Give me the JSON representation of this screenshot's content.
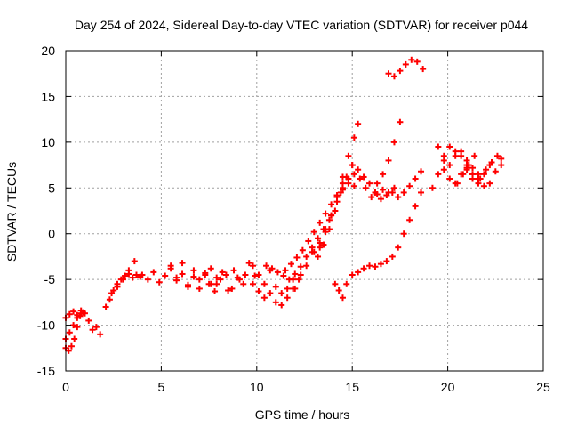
{
  "chart_data": {
    "type": "scatter",
    "title": "Day 254 of 2024, Sidereal Day-to-day VTEC variation (SDTVAR) for receiver p044",
    "xlabel": "GPS time / hours",
    "ylabel": "SDTVAR / TECUs",
    "xlim": [
      0,
      25
    ],
    "ylim": [
      -15,
      20
    ],
    "xticks": [
      0,
      5,
      10,
      15,
      20,
      25
    ],
    "yticks": [
      -15,
      -10,
      -5,
      0,
      5,
      10,
      15,
      20
    ],
    "grid": true,
    "marker": "plus",
    "color": "#ff0000",
    "series": [
      {
        "x": [
          0.0,
          0.15,
          0.3,
          0.45,
          0.6,
          0.75,
          0.9
        ],
        "y": [
          -12.5,
          -12.8,
          -12.3,
          -11.5,
          -10.2,
          -9.0,
          -8.6
        ]
      },
      {
        "x": [
          0.0,
          0.2,
          0.4,
          0.6,
          0.8,
          1.0
        ],
        "y": [
          -9.2,
          -8.8,
          -8.5,
          -8.9,
          -8.4,
          -8.7
        ]
      },
      {
        "x": [
          0.0,
          0.2,
          0.4,
          0.6,
          0.8
        ],
        "y": [
          -11.5,
          -10.8,
          -10.0,
          -9.2,
          -8.7
        ]
      },
      {
        "x": [
          1.2,
          1.4,
          1.6,
          1.8
        ],
        "y": [
          -9.5,
          -10.5,
          -10.2,
          -11.0
        ]
      },
      {
        "x": [
          2.1,
          2.3,
          2.5,
          2.7,
          2.9,
          3.1,
          3.3,
          3.5,
          3.7,
          3.9
        ],
        "y": [
          -8.0,
          -7.2,
          -6.2,
          -5.5,
          -5.0,
          -4.6,
          -4.4,
          -4.8,
          -4.5,
          -4.7
        ]
      },
      {
        "x": [
          2.4,
          2.7,
          3.0,
          3.3,
          3.6
        ],
        "y": [
          -6.5,
          -5.8,
          -5.0,
          -4.0,
          -3.0
        ]
      },
      {
        "x": [
          4.0,
          4.3,
          4.6,
          4.9,
          5.2,
          5.5,
          5.8,
          6.1,
          6.4,
          6.7,
          7.0,
          7.3,
          7.6,
          7.9
        ],
        "y": [
          -4.5,
          -5.0,
          -4.2,
          -5.3,
          -4.6,
          -3.8,
          -5.1,
          -4.4,
          -5.6,
          -4.7,
          -5.0,
          -4.3,
          -5.5,
          -4.8
        ]
      },
      {
        "x": [
          5.5,
          5.8,
          6.1,
          6.4,
          6.7,
          7.0,
          7.3,
          7.6,
          7.9,
          8.2,
          8.5,
          8.8,
          9.1,
          9.4
        ],
        "y": [
          -3.5,
          -4.8,
          -3.2,
          -5.8,
          -4.0,
          -6.0,
          -4.5,
          -3.8,
          -5.5,
          -4.2,
          -6.2,
          -4.0,
          -5.0,
          -4.5
        ]
      },
      {
        "x": [
          7.5,
          7.8,
          8.1,
          8.4,
          8.7,
          9.0,
          9.3,
          9.6,
          9.9
        ],
        "y": [
          -5.5,
          -6.3,
          -5.0,
          -4.5,
          -6.0,
          -4.8,
          -5.5,
          -3.2,
          -4.6
        ]
      },
      {
        "x": [
          9.8,
          10.1,
          10.4,
          10.7,
          11.0,
          11.3,
          11.6,
          11.9
        ],
        "y": [
          -3.5,
          -4.5,
          -5.5,
          -4.0,
          -5.8,
          -6.5,
          -6.0,
          -5.0
        ]
      },
      {
        "x": [
          9.8,
          10.1,
          10.4,
          10.7,
          11.0,
          11.3,
          11.6,
          11.9,
          12.2
        ],
        "y": [
          -5.5,
          -6.3,
          -7.0,
          -6.5,
          -7.5,
          -7.8,
          -7.0,
          -6.0,
          -5.0
        ]
      },
      {
        "x": [
          10.5,
          10.8,
          11.1,
          11.4,
          11.7,
          12.0,
          12.3,
          12.6,
          12.9,
          13.2
        ],
        "y": [
          -3.5,
          -3.8,
          -4.2,
          -4.6,
          -5.0,
          -4.4,
          -3.6,
          -2.5,
          -1.5,
          -0.5
        ]
      },
      {
        "x": [
          11.5,
          11.8,
          12.1,
          12.4,
          12.7,
          13.0,
          13.3,
          13.6,
          13.9,
          14.2,
          14.5
        ],
        "y": [
          -4.0,
          -3.3,
          -2.6,
          -1.8,
          -0.8,
          0.2,
          1.2,
          2.2,
          3.2,
          4.2,
          5.0
        ]
      },
      {
        "x": [
          12.0,
          12.3,
          12.6,
          12.9,
          13.2,
          13.5,
          13.8
        ],
        "y": [
          -6.0,
          -4.5,
          -3.5,
          -2.0,
          -0.5,
          0.5,
          1.5
        ]
      },
      {
        "x": [
          13.0,
          13.3,
          13.6,
          13.9,
          14.2,
          14.5,
          14.8,
          15.1
        ],
        "y": [
          -2.0,
          -1.0,
          0.5,
          2.0,
          3.5,
          4.8,
          5.5,
          5.2
        ]
      },
      {
        "x": [
          13.2,
          13.5,
          13.8,
          14.1,
          14.4,
          14.7,
          15.0
        ],
        "y": [
          -2.5,
          -1.2,
          0.5,
          2.5,
          4.5,
          6.2,
          7.5
        ]
      },
      {
        "x": [
          13.3,
          13.6,
          13.9,
          14.2,
          14.5,
          14.8,
          15.1,
          15.3
        ],
        "y": [
          -1.5,
          0.2,
          2.0,
          4.0,
          6.2,
          8.5,
          10.5,
          12.0
        ]
      },
      {
        "x": [
          14.5,
          14.8,
          15.1,
          15.4,
          15.7,
          16.0,
          16.3,
          16.6,
          16.9,
          17.2
        ],
        "y": [
          5.5,
          6.0,
          6.5,
          6.0,
          5.0,
          4.0,
          4.3,
          4.8,
          4.5,
          5.0
        ]
      },
      {
        "x": [
          15.0,
          15.3,
          15.6,
          15.9,
          16.2,
          16.5,
          16.8,
          17.1,
          17.4,
          17.7,
          18.0,
          18.3,
          18.6
        ],
        "y": [
          7.5,
          7.0,
          6.2,
          5.5,
          4.5,
          3.8,
          4.2,
          4.5,
          4.0,
          4.5,
          5.2,
          6.0,
          6.8
        ]
      },
      {
        "x": [
          16.3,
          16.6,
          16.9,
          17.2,
          17.5
        ],
        "y": [
          5.5,
          6.5,
          8.0,
          10.0,
          12.2
        ]
      },
      {
        "x": [
          14.1,
          14.3,
          14.5,
          14.7,
          15.0,
          15.3,
          15.6,
          15.9,
          16.2,
          16.5,
          16.8,
          17.1,
          17.4,
          17.7,
          18.0,
          18.3,
          18.6
        ],
        "y": [
          -5.5,
          -6.2,
          -7.0,
          -5.5,
          -4.5,
          -4.2,
          -3.8,
          -3.5,
          -3.6,
          -3.3,
          -3.0,
          -2.5,
          -1.5,
          0.0,
          1.5,
          3.0,
          4.5
        ]
      },
      {
        "x": [
          16.9,
          17.2,
          17.5,
          17.8,
          18.1,
          18.4,
          18.7
        ],
        "y": [
          17.5,
          17.2,
          17.8,
          18.5,
          19.0,
          18.8,
          18.0
        ]
      },
      {
        "x": [
          19.2,
          19.5,
          19.8,
          20.1,
          20.4,
          20.7,
          21.0,
          21.3,
          21.6
        ],
        "y": [
          5.0,
          6.5,
          8.0,
          9.5,
          9.0,
          8.5,
          7.0,
          6.0,
          6.5
        ]
      },
      {
        "x": [
          19.5,
          19.8,
          20.1,
          20.4,
          20.7,
          21.0,
          21.3
        ],
        "y": [
          9.5,
          8.5,
          7.5,
          8.5,
          9.0,
          8.0,
          7.2
        ]
      },
      {
        "x": [
          19.8,
          20.1,
          20.4,
          20.7,
          21.0,
          21.3,
          21.6,
          21.9,
          22.2
        ],
        "y": [
          7.0,
          6.0,
          5.5,
          6.5,
          7.2,
          6.5,
          6.0,
          5.2,
          5.5
        ]
      },
      {
        "x": [
          20.5,
          20.8,
          21.1,
          21.4,
          21.7,
          22.0,
          22.3,
          22.6,
          22.8
        ],
        "y": [
          5.5,
          6.5,
          7.5,
          8.5,
          6.0,
          7.0,
          7.8,
          8.5,
          8.2
        ]
      },
      {
        "x": [
          21.0,
          21.3,
          21.6,
          21.9,
          22.2,
          22.5,
          22.8
        ],
        "y": [
          7.5,
          6.5,
          5.5,
          6.5,
          7.5,
          6.8,
          7.5
        ]
      }
    ]
  }
}
